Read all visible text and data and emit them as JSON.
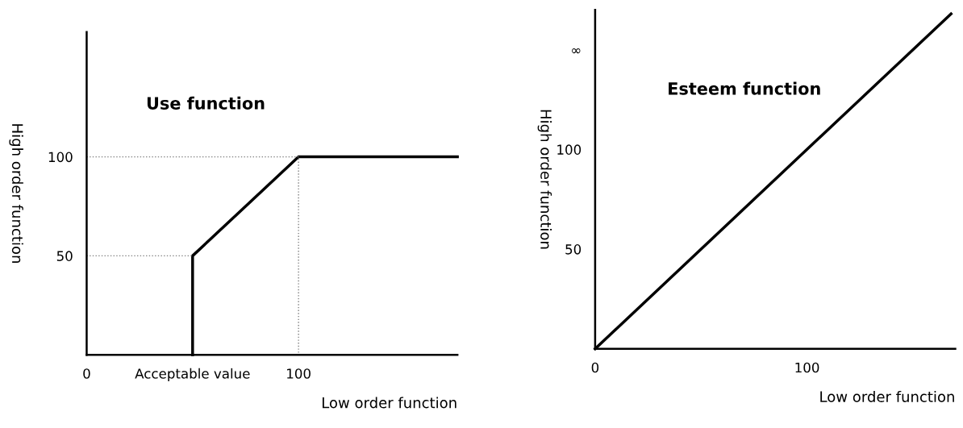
{
  "chart_data": [
    {
      "type": "line",
      "title": "Use function",
      "xlabel": "Low order function",
      "ylabel": "High order function",
      "series": [
        {
          "x": [
            50,
            50,
            100,
            175
          ],
          "values": [
            0,
            50,
            100,
            100
          ],
          "color": "#000000",
          "line_style": "solid"
        },
        {
          "x": [
            0,
            50
          ],
          "values": [
            50,
            50
          ],
          "color": "#808080",
          "line_style": "dotted"
        },
        {
          "x": [
            0,
            100,
            100
          ],
          "values": [
            100,
            100,
            0
          ],
          "color": "#808080",
          "line_style": "dotted"
        }
      ],
      "xlim": [
        0,
        175
      ],
      "ylim": [
        0,
        163
      ],
      "xticks": [
        0,
        {
          "value": 50,
          "label": "Acceptable value"
        },
        100
      ],
      "yticks": [
        50,
        100
      ],
      "grid": false,
      "marker": "none"
    },
    {
      "type": "line",
      "title": "Esteem function",
      "xlabel": "Low order function",
      "ylabel": "High order function",
      "series": [
        {
          "x": [
            0,
            168
          ],
          "values": [
            0,
            168
          ],
          "color": "#000000",
          "line_style": "solid"
        }
      ],
      "xlim": [
        0,
        170
      ],
      "ylim": [
        0,
        170
      ],
      "xticks": [
        0,
        100
      ],
      "yticks": [
        50,
        100,
        {
          "value": 150,
          "label": "∞"
        }
      ],
      "grid": false,
      "marker": "none"
    }
  ]
}
